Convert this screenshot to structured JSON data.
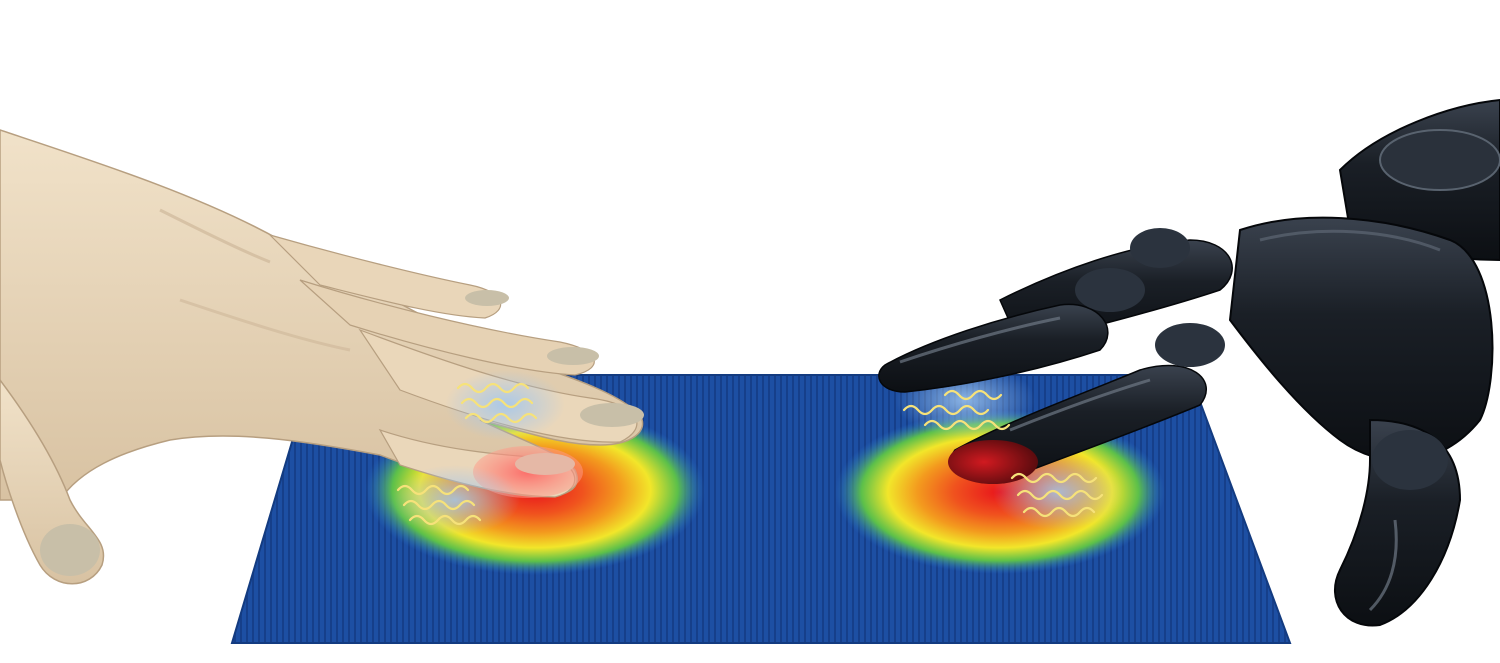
{
  "scene": {
    "colors": {
      "background": "#ffffff",
      "sheet_blue": "#1d4fa3",
      "sheet_stripe": "#163f8a",
      "hot_red": "#e8141c",
      "warm_orange": "#f39a1e",
      "mid_yellow": "#f2e62a",
      "mid_green": "#5cc04a",
      "skin": "#ecd9bd",
      "skin_shadow": "#c9b294",
      "nail": "#c8bfa8",
      "robot_body": "#1a1f26",
      "robot_highlight": "#6d7785",
      "wave": "#f6e27a"
    },
    "icons": [
      "human-hand-icon",
      "robot-hand-icon",
      "sensor-sheet-icon",
      "vibration-wave-icon"
    ]
  }
}
